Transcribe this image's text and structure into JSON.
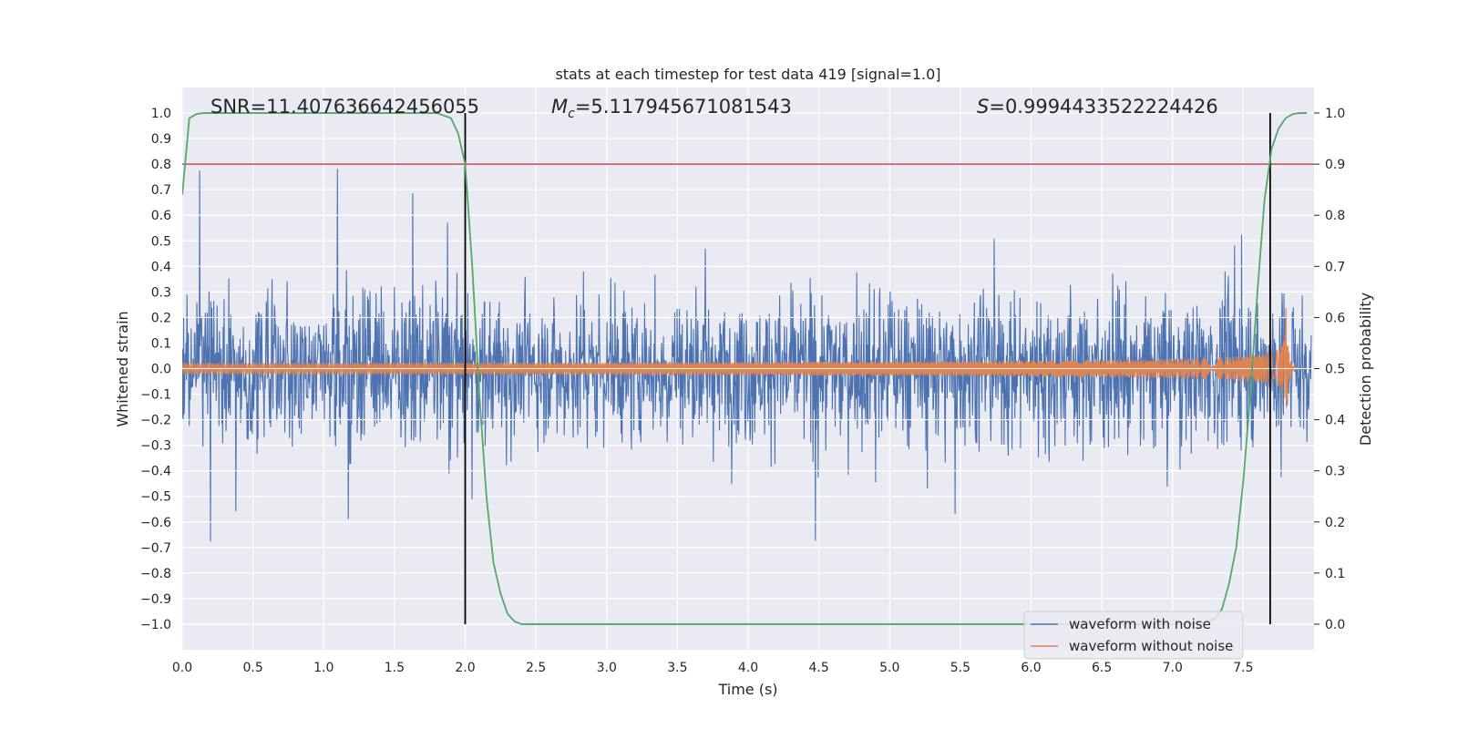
{
  "chart_data": {
    "type": "line",
    "title": "stats at each timestep for test data 419 [signal=1.0]",
    "xlabel": "Time (s)",
    "ylabel": "Whitened strain",
    "y2label": "Detection probability",
    "xlim": [
      0.0,
      8.0
    ],
    "ylim": [
      -1.1,
      1.1
    ],
    "y2lim": [
      -0.05,
      1.05
    ],
    "x_ticks": [
      "0.0",
      "0.5",
      "1.0",
      "1.5",
      "2.0",
      "2.5",
      "3.0",
      "3.5",
      "4.0",
      "4.5",
      "5.0",
      "5.5",
      "6.0",
      "6.5",
      "7.0",
      "7.5"
    ],
    "y_ticks": [
      "1.0",
      "0.9",
      "0.8",
      "0.7",
      "0.6",
      "0.5",
      "0.4",
      "0.3",
      "0.2",
      "0.1",
      "0.0",
      "−0.1",
      "−0.2",
      "−0.3",
      "−0.4",
      "−0.5",
      "−0.6",
      "−0.7",
      "−0.8",
      "−0.9",
      "−1.0"
    ],
    "y2_ticks": [
      "1.0",
      "0.9",
      "0.8",
      "0.7",
      "0.6",
      "0.5",
      "0.4",
      "0.3",
      "0.2",
      "0.1",
      "0.0"
    ],
    "grid": true,
    "legend_position": "lower-right",
    "annotations": {
      "snr": "SNR=11.407636642456055",
      "mc_value": "=5.117945671081543",
      "mc_symbol": "M",
      "mc_subscript": "c",
      "s_value": "=0.9994433522224426",
      "s_symbol": "S"
    },
    "threshold_y2": 0.9,
    "vertical_lines_x": [
      2.0,
      7.69
    ],
    "series": [
      {
        "name": "waveform with noise",
        "color": "#4c72b0",
        "axis": "left",
        "description_range": [
          -0.95,
          0.95
        ]
      },
      {
        "name": "waveform without noise",
        "color": "#dd8452",
        "axis": "left",
        "chirp_end_x": 7.8,
        "chirp_peak_amplitude": 0.33
      },
      {
        "name": "Detection probability",
        "color": "#55a868",
        "axis": "right",
        "x": [
          0.0,
          0.05,
          0.1,
          0.15,
          0.5,
          1.0,
          1.5,
          1.8,
          1.9,
          1.95,
          2.0,
          2.05,
          2.1,
          2.15,
          2.2,
          2.25,
          2.3,
          2.35,
          2.4,
          2.5,
          3.0,
          4.0,
          5.0,
          6.0,
          7.0,
          7.2,
          7.3,
          7.35,
          7.4,
          7.45,
          7.5,
          7.55,
          7.6,
          7.65,
          7.7,
          7.75,
          7.8,
          7.85,
          7.9,
          7.95
        ],
        "y": [
          0.84,
          0.99,
          0.998,
          1.0,
          1.0,
          1.0,
          1.0,
          1.0,
          0.99,
          0.96,
          0.9,
          0.7,
          0.45,
          0.25,
          0.12,
          0.06,
          0.02,
          0.005,
          0.0,
          0.0,
          0.0,
          0.0,
          0.0,
          0.0,
          0.0,
          0.002,
          0.01,
          0.03,
          0.08,
          0.15,
          0.28,
          0.45,
          0.65,
          0.83,
          0.93,
          0.97,
          0.99,
          0.998,
          1.0,
          1.0
        ]
      }
    ],
    "colors": {
      "background": "#eaeaf2",
      "grid": "#ffffff",
      "threshold": "#c44e52",
      "vline": "#000000"
    }
  }
}
